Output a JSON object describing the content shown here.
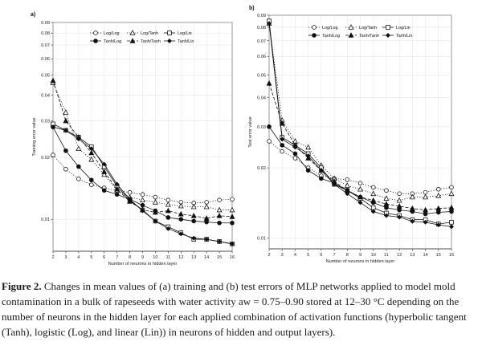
{
  "chart_data": [
    {
      "type": "line",
      "panel_label": "a)",
      "title": "",
      "xlabel": "Number of neurons in hidden layer",
      "ylabel": "Training error value",
      "y_scale": "log",
      "ylim": [
        0.007,
        0.09
      ],
      "x": [
        2,
        3,
        4,
        5,
        6,
        7,
        8,
        9,
        10,
        11,
        12,
        13,
        14,
        15,
        16
      ],
      "y_ticks": [
        0.01,
        0.02,
        0.03,
        0.04,
        0.05,
        0.06,
        0.07,
        0.08,
        0.09
      ],
      "y_tick_labels": [
        "0.01",
        "0.02",
        "0.03",
        "0.04",
        "0.05",
        "0.06",
        "0.07",
        "0.08",
        "0.09"
      ],
      "legend_position": "top-right",
      "grid": true,
      "series": [
        {
          "name": "Log/Log",
          "line": "dotted",
          "marker": "circle-open",
          "values": [
            0.0205,
            0.0175,
            0.0157,
            0.0147,
            0.0142,
            0.0138,
            0.0135,
            0.0132,
            0.0128,
            0.0124,
            0.0121,
            0.012,
            0.0121,
            0.0124,
            0.0125
          ]
        },
        {
          "name": "Log/Tanh",
          "line": "dotted",
          "marker": "triangle-open",
          "values": [
            0.046,
            0.033,
            0.022,
            0.0195,
            0.0165,
            0.0138,
            0.0128,
            0.0124,
            0.0121,
            0.0118,
            0.0116,
            0.0115,
            0.0115,
            0.0111,
            0.0111
          ]
        },
        {
          "name": "Log/Lin",
          "line": "solid",
          "marker": "square-open",
          "values": [
            0.029,
            0.027,
            0.025,
            0.0225,
            0.018,
            0.0145,
            0.0123,
            0.0111,
            0.0098,
            0.0092,
            0.0086,
            0.008,
            0.008,
            0.0078,
            0.0076
          ]
        },
        {
          "name": "Tanh/Log",
          "line": "solid",
          "marker": "circle-filled",
          "values": [
            0.028,
            0.0215,
            0.018,
            0.0155,
            0.0138,
            0.0132,
            0.0125,
            0.0117,
            0.011,
            0.0102,
            0.01,
            0.0098,
            0.0097,
            0.0096,
            0.0096
          ]
        },
        {
          "name": "Tanh/Tanh",
          "line": "dashed",
          "marker": "triangle-filled",
          "values": [
            0.047,
            0.03,
            0.025,
            0.021,
            0.017,
            0.014,
            0.0122,
            0.0111,
            0.0108,
            0.011,
            0.0106,
            0.0104,
            0.0101,
            0.0104,
            0.0103
          ]
        },
        {
          "name": "Tanh/Lin",
          "line": "solid",
          "marker": "diamond-filled",
          "values": [
            0.028,
            0.027,
            0.0245,
            0.022,
            0.0185,
            0.0148,
            0.0125,
            0.011,
            0.0098,
            0.009,
            0.0085,
            0.0081,
            0.008,
            0.0078,
            0.0076
          ]
        }
      ]
    },
    {
      "type": "line",
      "panel_label": "b)",
      "title": "",
      "xlabel": "Number of neurons in hidden layer",
      "ylabel": "Test error value",
      "y_scale": "log",
      "ylim": [
        0.009,
        0.09
      ],
      "x": [
        2,
        3,
        4,
        5,
        6,
        7,
        8,
        9,
        10,
        11,
        12,
        13,
        14,
        15,
        16
      ],
      "y_ticks": [
        0.01,
        0.02,
        0.03,
        0.04,
        0.05,
        0.06,
        0.07,
        0.08,
        0.09
      ],
      "y_tick_labels": [
        "0.01",
        "0.02",
        "0.03",
        "0.04",
        "0.05",
        "0.06",
        "0.07",
        "0.08",
        "0.09"
      ],
      "legend_position": "top-right",
      "grid": true,
      "series": [
        {
          "name": "Log/Log",
          "line": "dotted",
          "marker": "circle-open",
          "values": [
            0.026,
            0.0235,
            0.022,
            0.02,
            0.0185,
            0.018,
            0.0178,
            0.0172,
            0.0165,
            0.016,
            0.0155,
            0.0155,
            0.0157,
            0.0162,
            0.0165
          ]
        },
        {
          "name": "Log/Tanh",
          "line": "dotted",
          "marker": "triangle-open",
          "values": [
            0.083,
            0.032,
            0.026,
            0.0245,
            0.0205,
            0.018,
            0.0168,
            0.0162,
            0.0155,
            0.0148,
            0.0145,
            0.015,
            0.015,
            0.0152,
            0.0155
          ]
        },
        {
          "name": "Log/Lin",
          "line": "solid",
          "marker": "square-open",
          "values": [
            0.085,
            0.027,
            0.025,
            0.023,
            0.02,
            0.017,
            0.016,
            0.0148,
            0.0135,
            0.0128,
            0.0125,
            0.012,
            0.012,
            0.0115,
            0.0117
          ]
        },
        {
          "name": "Tanh/Log",
          "line": "solid",
          "marker": "circle-filled",
          "values": [
            0.03,
            0.025,
            0.023,
            0.0195,
            0.018,
            0.0172,
            0.016,
            0.015,
            0.0142,
            0.0135,
            0.0132,
            0.013,
            0.0127,
            0.0129,
            0.013
          ]
        },
        {
          "name": "Tanh/Tanh",
          "line": "dashed",
          "marker": "triangle-filled",
          "values": [
            0.046,
            0.031,
            0.025,
            0.022,
            0.0195,
            0.0175,
            0.016,
            0.015,
            0.0145,
            0.014,
            0.0137,
            0.0134,
            0.0132,
            0.0134,
            0.0135
          ]
        },
        {
          "name": "Tanh/Lin",
          "line": "solid",
          "marker": "diamond-filled",
          "values": [
            0.083,
            0.0265,
            0.0245,
            0.0225,
            0.0195,
            0.017,
            0.0155,
            0.0142,
            0.013,
            0.0125,
            0.0123,
            0.0118,
            0.0117,
            0.0114,
            0.0112
          ]
        }
      ]
    }
  ],
  "caption": {
    "label": "Figure 2.",
    "text": " Changes in mean values of (a) training and (b) test errors of MLP networks applied to model mold contamination in a bulk of rapeseeds with water activity aw = 0.75–0.90 stored at 12–30 °C depending on the number of neurons in the hidden layer for each applied combination of activation functions (hyperbolic tangent (Tanh), logistic (Log), and linear (Lin)) in neurons of hidden and output layers)."
  }
}
